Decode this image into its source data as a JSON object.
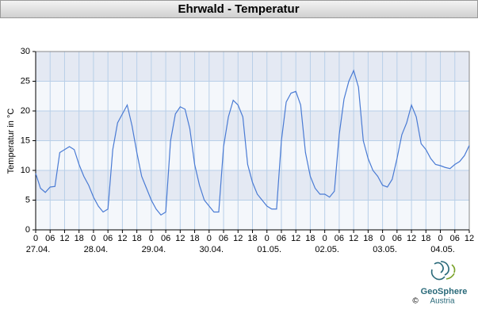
{
  "chart_data": {
    "type": "line",
    "title": "Ehrwald - Temperatur",
    "ylabel": "Temperatur in °C",
    "x": [
      0,
      2,
      4,
      6,
      8,
      10,
      12,
      14,
      16,
      18,
      20,
      22,
      24,
      26,
      28,
      30,
      32,
      34,
      36,
      38,
      40,
      42,
      44,
      46,
      48,
      50,
      52,
      54,
      56,
      58,
      60,
      62,
      64,
      66,
      68,
      70,
      72,
      74,
      76,
      78,
      80,
      82,
      84,
      86,
      88,
      90,
      92,
      94,
      96,
      98,
      100,
      102,
      104,
      106,
      108,
      110,
      112,
      114,
      116,
      118,
      120,
      122,
      124,
      126,
      128,
      130,
      132,
      134,
      136,
      138,
      140,
      142,
      144,
      146,
      148,
      150,
      152,
      154,
      156,
      158,
      160,
      162,
      164,
      166,
      168,
      170,
      172,
      174,
      176,
      178,
      180
    ],
    "series": [
      {
        "name": "Temperatur",
        "color": "#4a7bd4",
        "values": [
          9.5,
          7,
          6.3,
          7.2,
          7.3,
          13,
          13.5,
          14,
          13.5,
          11,
          9,
          7.5,
          5.5,
          4,
          3,
          3.5,
          13.5,
          18,
          19.5,
          21,
          17.5,
          13,
          9,
          7,
          5,
          3.5,
          2.5,
          3,
          15,
          19.5,
          20.7,
          20.3,
          17,
          11,
          7.5,
          5,
          4,
          3,
          3,
          14,
          19,
          21.8,
          21,
          19,
          11,
          8,
          6,
          5,
          4,
          3.5,
          3.5,
          15,
          21.5,
          23,
          23.3,
          21,
          13,
          9,
          7,
          6,
          6,
          5.5,
          6.5,
          16,
          22,
          25,
          26.8,
          24,
          15,
          12,
          10,
          9,
          7.5,
          7.2,
          8.5,
          12,
          16,
          18,
          21,
          19,
          14.5,
          13.5,
          12,
          11,
          10.8,
          10.5,
          10.3,
          11,
          11.5,
          12.5,
          14.2
        ]
      }
    ],
    "xlim": [
      0,
      180
    ],
    "xticks": [
      0,
      {
        "value": 6,
        "label": "06"
      },
      12,
      18,
      {
        "value": 24,
        "label": "0"
      },
      {
        "value": 30,
        "label": "06"
      },
      {
        "value": 36,
        "label": "12"
      },
      {
        "value": 42,
        "label": "18"
      },
      {
        "value": 48,
        "label": "0"
      },
      {
        "value": 54,
        "label": "06"
      },
      {
        "value": 60,
        "label": "12"
      },
      {
        "value": 66,
        "label": "18"
      },
      {
        "value": 72,
        "label": "0"
      },
      {
        "value": 78,
        "label": "06"
      },
      {
        "value": 84,
        "label": "12"
      },
      {
        "value": 90,
        "label": "18"
      },
      {
        "value": 96,
        "label": "0"
      },
      {
        "value": 102,
        "label": "06"
      },
      {
        "value": 108,
        "label": "12"
      },
      {
        "value": 114,
        "label": "18"
      },
      {
        "value": 120,
        "label": "0"
      },
      {
        "value": 126,
        "label": "06"
      },
      {
        "value": 132,
        "label": "12"
      },
      {
        "value": 138,
        "label": "18"
      },
      {
        "value": 144,
        "label": "0"
      },
      {
        "value": 150,
        "label": "06"
      },
      {
        "value": 156,
        "label": "12"
      },
      {
        "value": 162,
        "label": "18"
      },
      {
        "value": 168,
        "label": "0"
      },
      {
        "value": 174,
        "label": "06"
      },
      {
        "value": 180,
        "label": "12"
      }
    ],
    "day_labels": [
      {
        "value": 0,
        "label": "27.04."
      },
      {
        "value": 24,
        "label": "28.04."
      },
      {
        "value": 48,
        "label": "29.04."
      },
      {
        "value": 72,
        "label": "30.04."
      },
      {
        "value": 96,
        "label": "01.05."
      },
      {
        "value": 120,
        "label": "02.05."
      },
      {
        "value": 144,
        "label": "03.05."
      },
      {
        "value": 168,
        "label": "04.05."
      }
    ],
    "ylim": [
      0,
      30
    ],
    "yticks": [
      0,
      5,
      10,
      15,
      20,
      25,
      30
    ],
    "grid": true,
    "logo": {
      "name": "GeoSphere",
      "sub": "Austria",
      "copyright": "©"
    }
  }
}
